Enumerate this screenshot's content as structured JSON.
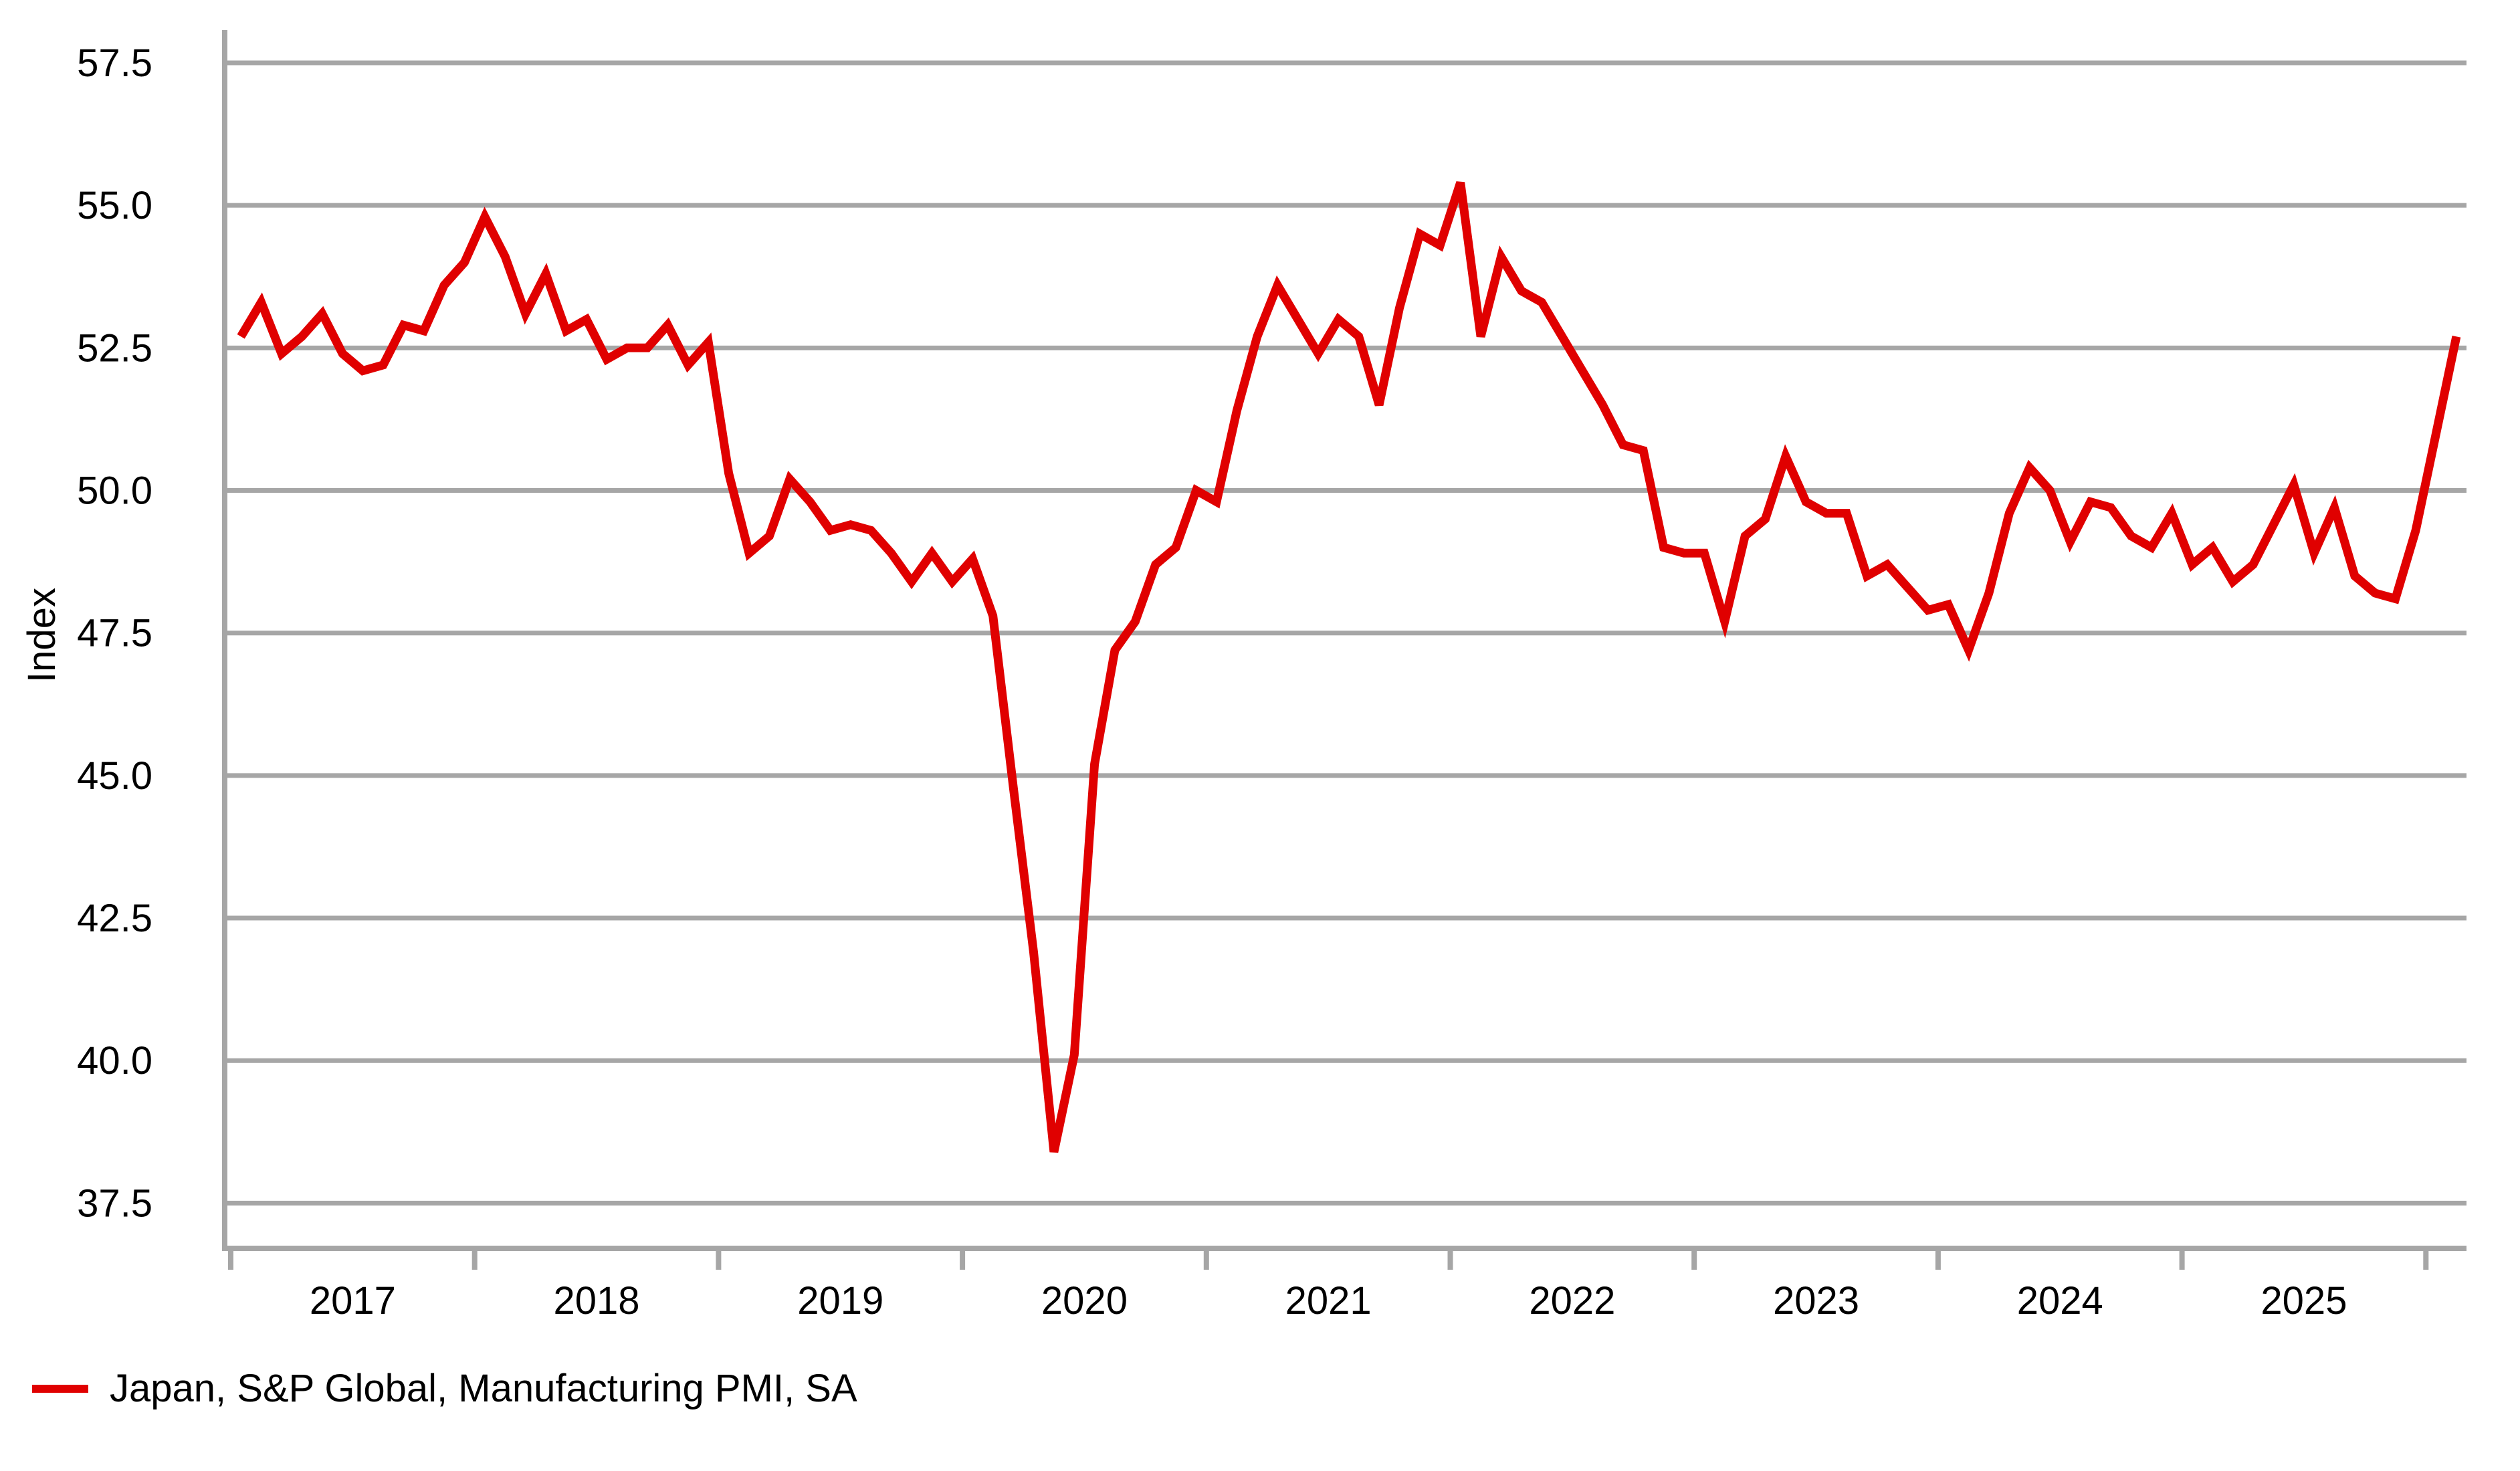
{
  "chart_data": {
    "type": "line",
    "title": "",
    "ylabel": "Index",
    "xlabel": "",
    "grid": "horizontal",
    "legend_position": "bottom-left",
    "ylim": [
      36.7,
      58.1
    ],
    "y_ticks": [
      "57.5",
      "55.0",
      "52.5",
      "50.0",
      "47.5",
      "45.0",
      "42.5",
      "40.0",
      "37.5"
    ],
    "y_tick_values": [
      57.5,
      55.0,
      52.5,
      50.0,
      47.5,
      45.0,
      42.5,
      40.0,
      37.5
    ],
    "x_tick_years": [
      "2017",
      "2018",
      "2019",
      "2020",
      "2021",
      "2022",
      "2023",
      "2024",
      "2025"
    ],
    "x_range_months": [
      "2017-01",
      "2026-02"
    ],
    "series": [
      {
        "name": "Japan, S&P Global, Manufacturing PMI, SA",
        "color": "#e00000",
        "months": [
          "2017-01",
          "2017-02",
          "2017-03",
          "2017-04",
          "2017-05",
          "2017-06",
          "2017-07",
          "2017-08",
          "2017-09",
          "2017-10",
          "2017-11",
          "2017-12",
          "2018-01",
          "2018-02",
          "2018-03",
          "2018-04",
          "2018-05",
          "2018-06",
          "2018-07",
          "2018-08",
          "2018-09",
          "2018-10",
          "2018-11",
          "2018-12",
          "2019-01",
          "2019-02",
          "2019-03",
          "2019-04",
          "2019-05",
          "2019-06",
          "2019-07",
          "2019-08",
          "2019-09",
          "2019-10",
          "2019-11",
          "2019-12",
          "2020-01",
          "2020-02",
          "2020-03",
          "2020-04",
          "2020-05",
          "2020-06",
          "2020-07",
          "2020-08",
          "2020-09",
          "2020-10",
          "2020-11",
          "2020-12",
          "2021-01",
          "2021-02",
          "2021-03",
          "2021-04",
          "2021-05",
          "2021-06",
          "2021-07",
          "2021-08",
          "2021-09",
          "2021-10",
          "2021-11",
          "2021-12",
          "2022-01",
          "2022-02",
          "2022-03",
          "2022-04",
          "2022-05",
          "2022-06",
          "2022-07",
          "2022-08",
          "2022-09",
          "2022-10",
          "2022-11",
          "2022-12",
          "2023-01",
          "2023-02",
          "2023-03",
          "2023-04",
          "2023-05",
          "2023-06",
          "2023-07",
          "2023-08",
          "2023-09",
          "2023-10",
          "2023-11",
          "2023-12",
          "2024-01",
          "2024-02",
          "2024-03",
          "2024-04",
          "2024-05",
          "2024-06",
          "2024-07",
          "2024-08",
          "2024-09",
          "2024-10",
          "2024-11",
          "2024-12",
          "2025-01",
          "2025-02",
          "2025-03",
          "2025-04",
          "2025-05",
          "2025-06",
          "2025-07",
          "2025-08",
          "2025-09",
          "2025-10",
          "2025-11",
          "2025-12",
          "2026-01",
          "2026-02"
        ],
        "values": [
          52.7,
          53.3,
          52.4,
          52.7,
          53.1,
          52.4,
          52.1,
          52.2,
          52.9,
          52.8,
          53.6,
          54.0,
          54.8,
          54.1,
          53.1,
          53.8,
          52.8,
          53.0,
          52.3,
          52.5,
          52.5,
          52.9,
          52.2,
          52.6,
          50.3,
          48.9,
          49.2,
          50.2,
          49.8,
          49.3,
          49.4,
          49.3,
          48.9,
          48.4,
          48.9,
          48.4,
          48.8,
          47.8,
          44.8,
          41.9,
          38.4,
          40.1,
          45.2,
          47.2,
          47.7,
          48.7,
          49.0,
          50.0,
          49.8,
          51.4,
          52.7,
          53.6,
          53.0,
          52.4,
          53.0,
          52.7,
          51.5,
          53.2,
          54.5,
          54.3,
          55.4,
          52.7,
          54.1,
          53.5,
          53.3,
          52.7,
          52.1,
          51.5,
          50.8,
          50.7,
          49.0,
          48.9,
          48.9,
          47.7,
          49.2,
          49.5,
          50.6,
          49.8,
          49.6,
          49.6,
          48.5,
          48.7,
          48.3,
          47.9,
          48.0,
          47.2,
          48.2,
          49.6,
          50.4,
          50.0,
          49.1,
          49.8,
          49.7,
          49.2,
          49.0,
          49.6,
          48.7,
          49.0,
          48.4,
          48.7,
          49.4,
          50.1,
          48.9,
          49.7,
          48.5,
          48.2,
          48.1,
          49.3,
          51.0,
          52.7
        ]
      }
    ]
  },
  "legend": {
    "label": "Japan, S&P Global, Manufacturing PMI, SA",
    "swatch_color": "#e00000"
  },
  "colors": {
    "series_red": "#e00000",
    "grid_gray": "#a6a6a6",
    "text_black": "#000000",
    "background": "#ffffff"
  }
}
